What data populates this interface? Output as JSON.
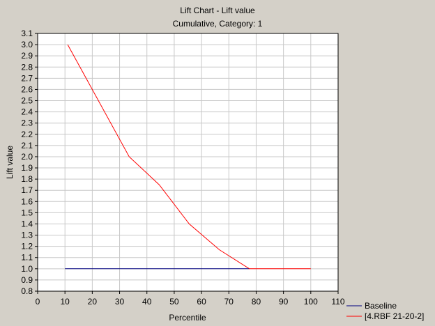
{
  "chart_data": {
    "type": "line",
    "title": "Lift Chart - Lift value",
    "subtitle": "Cumulative, Category: 1",
    "xlabel": "Percentile",
    "ylabel": "Lift value",
    "xlim": [
      0,
      110
    ],
    "ylim": [
      0.8,
      3.1
    ],
    "xticks": [
      0,
      10,
      20,
      30,
      40,
      50,
      60,
      70,
      80,
      90,
      100,
      110
    ],
    "yticks": [
      0.8,
      0.9,
      1.0,
      1.1,
      1.2,
      1.3,
      1.4,
      1.5,
      1.6,
      1.7,
      1.8,
      1.9,
      2.0,
      2.1,
      2.2,
      2.3,
      2.4,
      2.5,
      2.6,
      2.7,
      2.8,
      2.9,
      3.0,
      3.1
    ],
    "grid": true,
    "legend_position": "bottom-right",
    "series": [
      {
        "name": "Baseline",
        "color": "#000080",
        "x": [
          10,
          77.5
        ],
        "y": [
          1.0,
          1.0
        ]
      },
      {
        "name": "[4.RBF 21-20-2]",
        "color": "#ff0000",
        "x": [
          11,
          33.5,
          44.5,
          55.5,
          66.5,
          77.5,
          100
        ],
        "y": [
          3.0,
          2.0,
          1.75,
          1.4,
          1.17,
          1.0,
          1.0
        ]
      }
    ]
  }
}
